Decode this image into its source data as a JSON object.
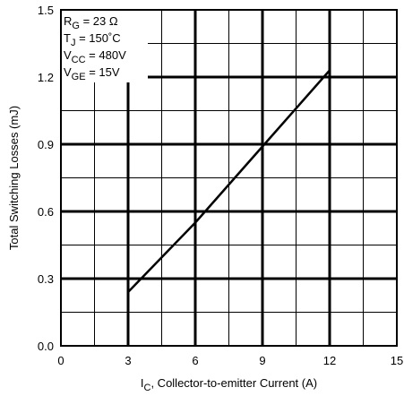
{
  "chart_data": {
    "type": "line",
    "xlabel_main": "I",
    "xlabel_sub": "C",
    "xlabel_rest": ", Collector-to-emitter Current (A)",
    "ylabel": "Total Switching Losses (mJ)",
    "xlim": [
      0,
      15
    ],
    "ylim": [
      0,
      1.5
    ],
    "x_ticks": [
      0,
      3,
      6,
      9,
      12,
      15
    ],
    "x_tick_labels": [
      "0",
      "3",
      "6",
      "9",
      "12",
      "15"
    ],
    "y_ticks": [
      0,
      0.3,
      0.6,
      0.9,
      1.2,
      1.5
    ],
    "y_tick_labels": [
      "0.0",
      "0.3",
      "0.6",
      "0.9",
      "1.2",
      "1.5"
    ],
    "x_minor_step": 1.5,
    "y_minor_step": 0.15,
    "grid": true,
    "series": [
      {
        "x": [
          3,
          6,
          9,
          12
        ],
        "y": [
          0.24,
          0.55,
          0.89,
          1.23
        ]
      }
    ],
    "conditions": [
      {
        "main": "R",
        "sub": "G",
        "rest": "  = 23  Ω"
      },
      {
        "main": "T",
        "sub": "J",
        "rest": "  = 150˚C"
      },
      {
        "main": "V",
        "sub": "CC",
        "rest": " = 480V"
      },
      {
        "main": "V",
        "sub": "GE",
        "rest": " = 15V"
      }
    ]
  }
}
